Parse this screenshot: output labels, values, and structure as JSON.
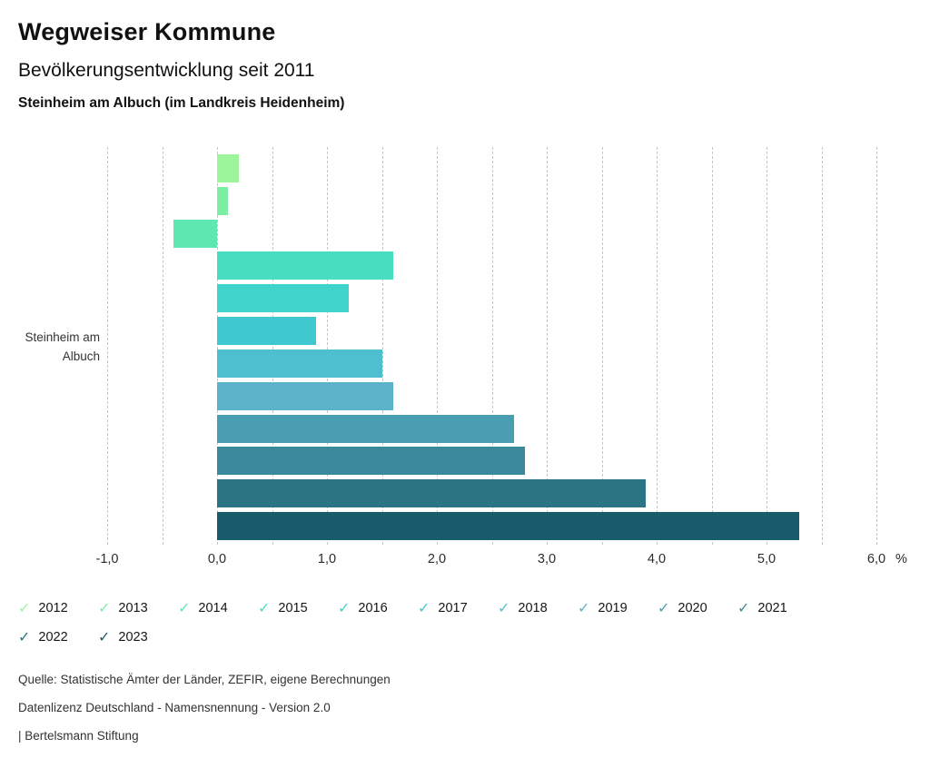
{
  "header": {
    "title": "Wegweiser Kommune",
    "subtitle": "Bevölkerungsentwicklung seit 2011",
    "location": "Steinheim am Albuch (im Landkreis Heidenheim)"
  },
  "chart_data": {
    "type": "bar",
    "orientation": "horizontal",
    "title": "Bevölkerungsentwicklung seit 2011",
    "subtitle": "Steinheim am Albuch (im Landkreis Heidenheim)",
    "category_label_lines": [
      "Steinheim am",
      "Albuch"
    ],
    "unit": "%",
    "grid": "dashed-vertical",
    "legend_position": "bottom",
    "axis": {
      "min": -1.0,
      "max": 6.0,
      "gridline_step": 0.5,
      "tick_labels": [
        {
          "text": "-1,0",
          "value": -1.0
        },
        {
          "text": "0,0",
          "value": 0.0
        },
        {
          "text": "1,0",
          "value": 1.0
        },
        {
          "text": "2,0",
          "value": 2.0
        },
        {
          "text": "3,0",
          "value": 3.0
        },
        {
          "text": "4,0",
          "value": 4.0
        },
        {
          "text": "5,0",
          "value": 5.0
        },
        {
          "text": "6,0",
          "value": 6.0
        }
      ]
    },
    "series": [
      {
        "year": "2012",
        "value": 0.2,
        "color": "#9cf59a"
      },
      {
        "year": "2013",
        "value": 0.1,
        "color": "#7defa4"
      },
      {
        "year": "2014",
        "value": -0.4,
        "color": "#5fe7b2"
      },
      {
        "year": "2015",
        "value": 1.6,
        "color": "#49dec2"
      },
      {
        "year": "2016",
        "value": 1.2,
        "color": "#3ed3cb"
      },
      {
        "year": "2017",
        "value": 0.9,
        "color": "#3fc8d0"
      },
      {
        "year": "2018",
        "value": 1.5,
        "color": "#4dbfce"
      },
      {
        "year": "2019",
        "value": 1.6,
        "color": "#5cb2c8"
      },
      {
        "year": "2020",
        "value": 2.7,
        "color": "#4a9eb1"
      },
      {
        "year": "2021",
        "value": 2.8,
        "color": "#3a8a9b"
      },
      {
        "year": "2022",
        "value": 3.9,
        "color": "#2b7484"
      },
      {
        "year": "2023",
        "value": 5.3,
        "color": "#185c6b"
      }
    ]
  },
  "legend": {
    "check_icon": "✓"
  },
  "footer": {
    "source": "Quelle: Statistische Ämter der Länder, ZEFIR, eigene Berechnungen",
    "license": "Datenlizenz Deutschland - Namensnennung - Version 2.0",
    "attribution": "| Bertelsmann Stiftung"
  }
}
